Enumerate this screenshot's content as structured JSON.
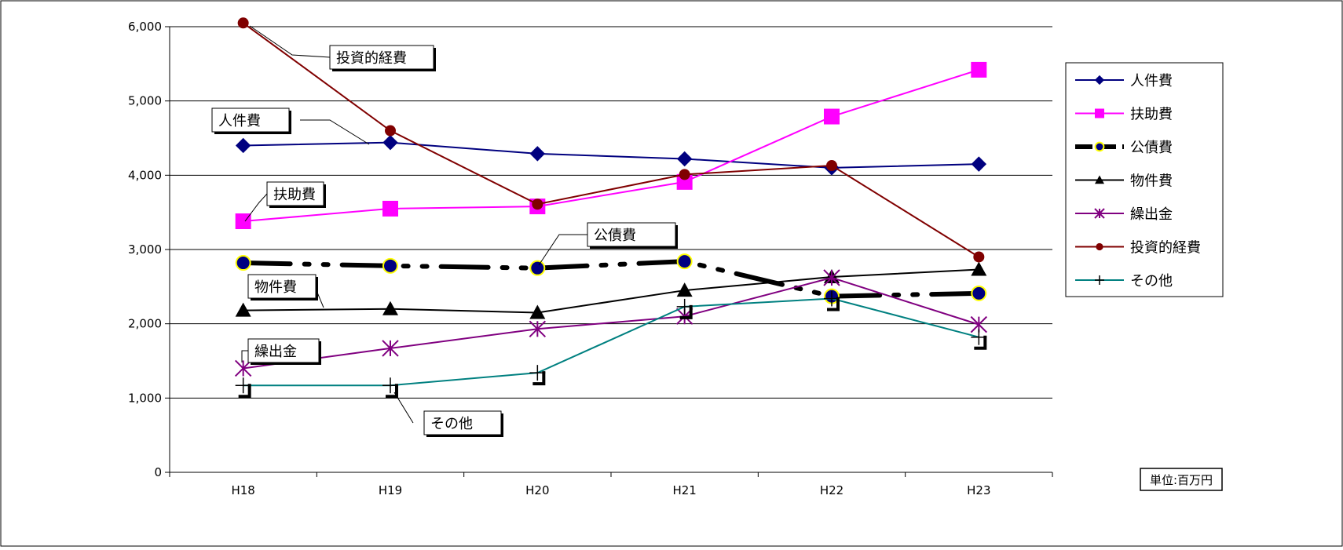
{
  "chart_data": {
    "type": "line",
    "categories": [
      "H18",
      "H19",
      "H20",
      "H21",
      "H22",
      "H23"
    ],
    "ylim": [
      0,
      6000
    ],
    "y_ticks": [
      "0",
      "1,000",
      "2,000",
      "3,000",
      "4,000",
      "5,000",
      "6,000"
    ],
    "grid": "horizontal",
    "legend_position": "right",
    "unit_label": "単位:百万円",
    "series": [
      {
        "name": "人件費",
        "values": [
          4400,
          4440,
          4290,
          4220,
          4100,
          4150
        ],
        "color": "#00007F",
        "marker": "diamond",
        "style": "solid"
      },
      {
        "name": "扶助費",
        "values": [
          3380,
          3550,
          3580,
          3910,
          4790,
          5420
        ],
        "color": "#FF00FF",
        "marker": "square",
        "style": "solid"
      },
      {
        "name": "公債費",
        "values": [
          2820,
          2780,
          2750,
          2840,
          2370,
          2410
        ],
        "color": "#000000",
        "marker": "circle-blue",
        "style": "dash-dot"
      },
      {
        "name": "物件費",
        "values": [
          2180,
          2200,
          2150,
          2450,
          2630,
          2730
        ],
        "color": "#000000",
        "marker": "triangle",
        "style": "solid"
      },
      {
        "name": "繰出金",
        "values": [
          1400,
          1670,
          1930,
          2100,
          2620,
          1990
        ],
        "color": "#800080",
        "marker": "asterisk",
        "style": "solid"
      },
      {
        "name": "投資的経費",
        "values": [
          6050,
          4600,
          3610,
          4010,
          4130,
          2900
        ],
        "color": "#800000",
        "marker": "circle",
        "style": "solid"
      },
      {
        "name": "その他",
        "values": [
          1170,
          1170,
          1340,
          2230,
          2340,
          1820
        ],
        "color": "#008080",
        "marker": "plus",
        "style": "solid"
      }
    ],
    "callouts": [
      {
        "series": 5,
        "text": "投資的経費"
      },
      {
        "series": 0,
        "text": "人件費"
      },
      {
        "series": 1,
        "text": "扶助費"
      },
      {
        "series": 2,
        "text": "公債費"
      },
      {
        "series": 3,
        "text": "物件費"
      },
      {
        "series": 4,
        "text": "繰出金"
      },
      {
        "series": 6,
        "text": "その他"
      }
    ]
  }
}
